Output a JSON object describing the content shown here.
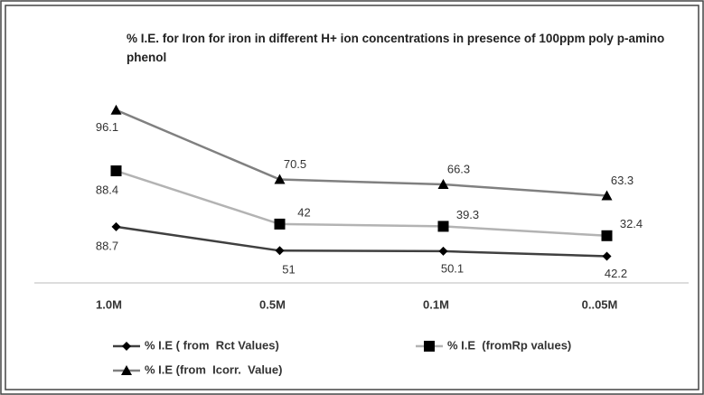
{
  "chart_data": {
    "type": "line",
    "stacked": true,
    "title": "% I.E. for Iron for iron in different H+ ion concentrations in presence of 100ppm poly p-amino phenol",
    "categories": [
      "1.0M",
      "0.5M",
      "0.1M",
      "0..05M"
    ],
    "series": [
      {
        "name": "% I.E ( from  Rct Values)",
        "color": "#404040",
        "marker": "diamond",
        "values": [
          88.7,
          51,
          50.1,
          42.2
        ]
      },
      {
        "name": "% I.E  (fromRp values)",
        "color": "#b3b3b3",
        "marker": "square",
        "values": [
          88.4,
          42,
          39.3,
          32.4
        ]
      },
      {
        "name": "% I.E (from  Icorr.  Value)",
        "color": "#808080",
        "marker": "triangle",
        "values": [
          96.1,
          70.5,
          66.3,
          63.3
        ]
      }
    ],
    "ylim": [
      0,
      300
    ],
    "legend": "bottom"
  }
}
